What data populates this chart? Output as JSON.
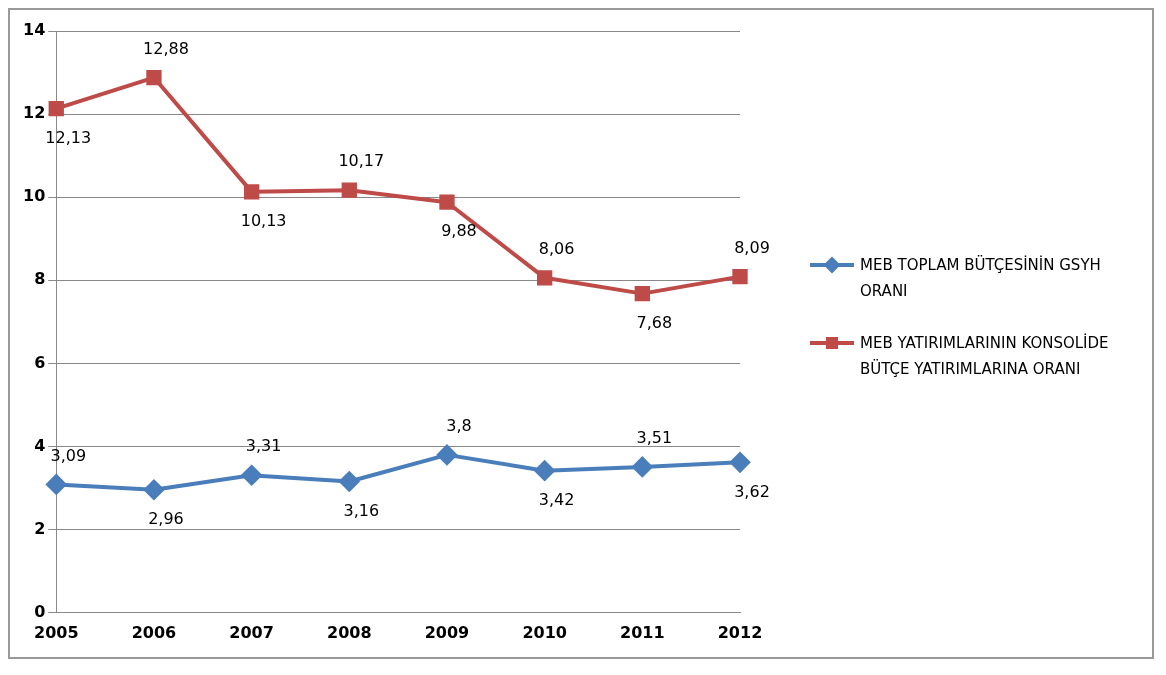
{
  "chart_data": {
    "type": "line",
    "categories": [
      "2005",
      "2006",
      "2007",
      "2008",
      "2009",
      "2010",
      "2011",
      "2012"
    ],
    "series": [
      {
        "name": "MEB TOPLAM BÜTÇESİNİN GSYH ORANI",
        "color": "#4a7ebb",
        "marker": "diamond",
        "values": [
          3.09,
          2.96,
          3.31,
          3.16,
          3.8,
          3.42,
          3.51,
          3.62
        ],
        "value_labels": [
          "3,09",
          "2,96",
          "3,31",
          "3,16",
          "3,8",
          "3,42",
          "3,51",
          "3,62"
        ]
      },
      {
        "name": "MEB YATIRIMLARININ KONSOLİDE BÜTÇE YATIRIMLARINA ORANI",
        "color": "#be4b48",
        "marker": "square",
        "values": [
          12.13,
          12.88,
          10.13,
          10.17,
          9.88,
          8.06,
          7.68,
          8.09
        ],
        "value_labels": [
          "12,13",
          "12,88",
          "10,13",
          "10,17",
          "9,88",
          "8,06",
          "7,68",
          "8,09"
        ]
      }
    ],
    "ylim": [
      0,
      14
    ],
    "yticks": [
      0,
      2,
      4,
      6,
      8,
      10,
      12,
      14
    ],
    "grid": "y",
    "legend": "right"
  }
}
